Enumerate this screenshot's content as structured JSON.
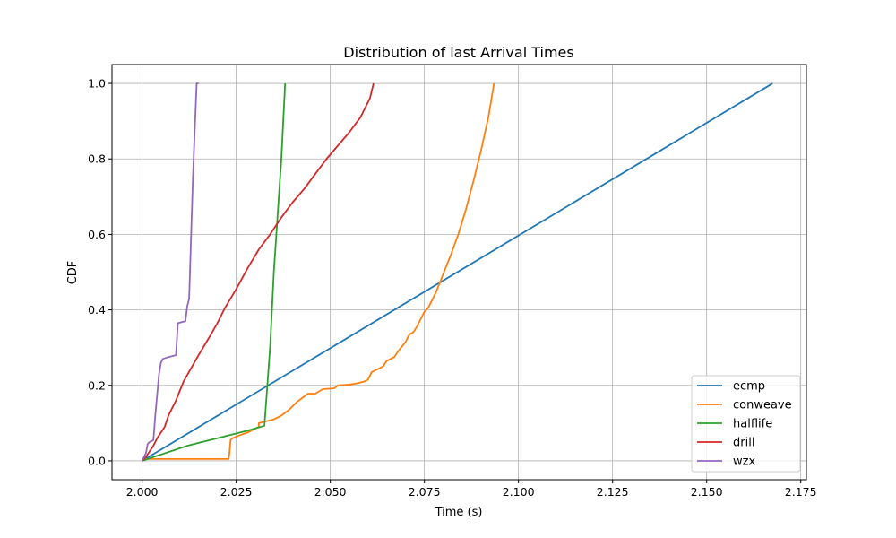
{
  "chart_data": {
    "type": "line",
    "title": "Distribution of last Arrival Times",
    "xlabel": "Time (s)",
    "ylabel": "CDF",
    "xlim": [
      1.992,
      2.1765
    ],
    "ylim": [
      -0.05,
      1.05
    ],
    "xticks": [
      "2.000",
      "2.025",
      "2.050",
      "2.075",
      "2.100",
      "2.125",
      "2.150",
      "2.175"
    ],
    "yticks": [
      "0.0",
      "0.2",
      "0.4",
      "0.6",
      "0.8",
      "1.0"
    ],
    "grid": true,
    "legend_position": "lower-right",
    "series": [
      {
        "name": "ecmp",
        "color": "#1f77b4",
        "points": [
          [
            2.0,
            0.0
          ],
          [
            2.1675,
            1.0
          ]
        ]
      },
      {
        "name": "conweave",
        "color": "#ff7f0e",
        "points": [
          [
            2.0,
            0.0
          ],
          [
            2.001,
            0.005
          ],
          [
            2.023,
            0.005
          ],
          [
            2.0232,
            0.02
          ],
          [
            2.0235,
            0.055
          ],
          [
            2.024,
            0.06
          ],
          [
            2.026,
            0.068
          ],
          [
            2.028,
            0.075
          ],
          [
            2.03,
            0.085
          ],
          [
            2.031,
            0.09
          ],
          [
            2.031,
            0.1
          ],
          [
            2.033,
            0.105
          ],
          [
            2.035,
            0.11
          ],
          [
            2.037,
            0.12
          ],
          [
            2.039,
            0.135
          ],
          [
            2.041,
            0.155
          ],
          [
            2.043,
            0.17
          ],
          [
            2.044,
            0.178
          ],
          [
            2.046,
            0.178
          ],
          [
            2.048,
            0.19
          ],
          [
            2.051,
            0.192
          ],
          [
            2.052,
            0.2
          ],
          [
            2.055,
            0.202
          ],
          [
            2.057,
            0.205
          ],
          [
            2.059,
            0.21
          ],
          [
            2.06,
            0.215
          ],
          [
            2.061,
            0.235
          ],
          [
            2.063,
            0.245
          ],
          [
            2.064,
            0.25
          ],
          [
            2.065,
            0.265
          ],
          [
            2.067,
            0.275
          ],
          [
            2.068,
            0.29
          ],
          [
            2.07,
            0.315
          ],
          [
            2.071,
            0.335
          ],
          [
            2.072,
            0.34
          ],
          [
            2.073,
            0.355
          ],
          [
            2.074,
            0.375
          ],
          [
            2.075,
            0.395
          ],
          [
            2.076,
            0.405
          ],
          [
            2.077,
            0.425
          ],
          [
            2.078,
            0.445
          ],
          [
            2.079,
            0.47
          ],
          [
            2.08,
            0.495
          ],
          [
            2.082,
            0.545
          ],
          [
            2.084,
            0.6
          ],
          [
            2.086,
            0.665
          ],
          [
            2.088,
            0.74
          ],
          [
            2.09,
            0.82
          ],
          [
            2.092,
            0.91
          ],
          [
            2.0935,
            1.0
          ]
        ]
      },
      {
        "name": "halflife",
        "color": "#2ca02c",
        "points": [
          [
            2.0,
            0.0
          ],
          [
            2.012,
            0.04
          ],
          [
            2.014,
            0.045
          ],
          [
            2.016,
            0.05
          ],
          [
            2.02,
            0.06
          ],
          [
            2.024,
            0.07
          ],
          [
            2.028,
            0.08
          ],
          [
            2.0325,
            0.093
          ],
          [
            2.034,
            0.3
          ],
          [
            2.035,
            0.5
          ],
          [
            2.036,
            0.65
          ],
          [
            2.037,
            0.8
          ],
          [
            2.038,
            1.0
          ]
        ]
      },
      {
        "name": "drill",
        "color": "#d62728",
        "points": [
          [
            2.0,
            0.0
          ],
          [
            2.001,
            0.01
          ],
          [
            2.002,
            0.025
          ],
          [
            2.003,
            0.04
          ],
          [
            2.004,
            0.06
          ],
          [
            2.005,
            0.075
          ],
          [
            2.006,
            0.09
          ],
          [
            2.007,
            0.12
          ],
          [
            2.009,
            0.16
          ],
          [
            2.011,
            0.21
          ],
          [
            2.013,
            0.245
          ],
          [
            2.015,
            0.28
          ],
          [
            2.018,
            0.33
          ],
          [
            2.02,
            0.365
          ],
          [
            2.022,
            0.405
          ],
          [
            2.025,
            0.455
          ],
          [
            2.028,
            0.51
          ],
          [
            2.031,
            0.56
          ],
          [
            2.034,
            0.6
          ],
          [
            2.037,
            0.645
          ],
          [
            2.04,
            0.685
          ],
          [
            2.043,
            0.72
          ],
          [
            2.046,
            0.76
          ],
          [
            2.049,
            0.8
          ],
          [
            2.052,
            0.835
          ],
          [
            2.055,
            0.87
          ],
          [
            2.058,
            0.91
          ],
          [
            2.0605,
            0.96
          ],
          [
            2.0615,
            1.0
          ]
        ]
      },
      {
        "name": "wzx",
        "color": "#9467bd",
        "points": [
          [
            2.0,
            0.0
          ],
          [
            2.001,
            0.02
          ],
          [
            2.0015,
            0.045
          ],
          [
            2.002,
            0.05
          ],
          [
            2.003,
            0.055
          ],
          [
            2.0035,
            0.12
          ],
          [
            2.004,
            0.175
          ],
          [
            2.0045,
            0.23
          ],
          [
            2.005,
            0.26
          ],
          [
            2.0055,
            0.27
          ],
          [
            2.007,
            0.275
          ],
          [
            2.009,
            0.28
          ],
          [
            2.0095,
            0.365
          ],
          [
            2.0115,
            0.37
          ],
          [
            2.012,
            0.41
          ],
          [
            2.0125,
            0.43
          ],
          [
            2.013,
            0.59
          ],
          [
            2.0135,
            0.75
          ],
          [
            2.014,
            0.88
          ],
          [
            2.0145,
            1.0
          ],
          [
            2.015,
            1.0
          ]
        ]
      }
    ]
  }
}
